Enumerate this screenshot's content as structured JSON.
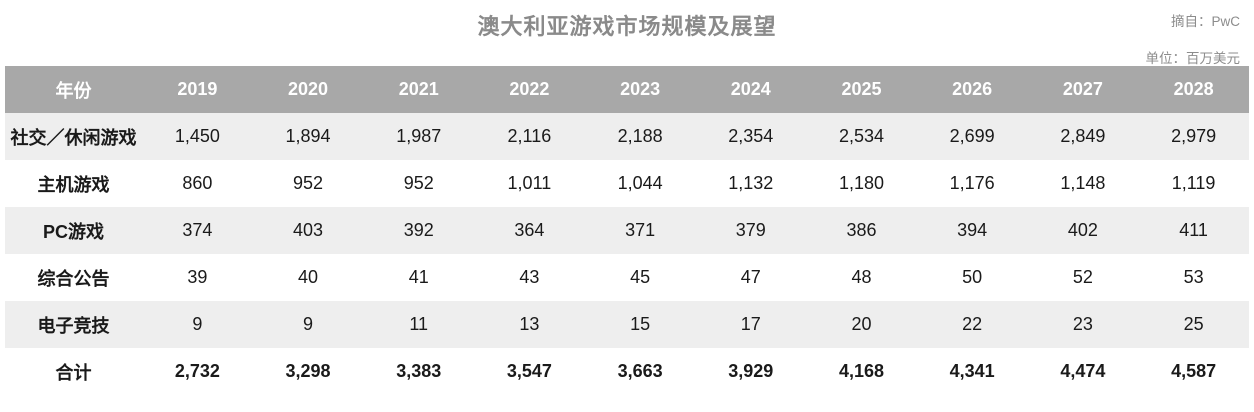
{
  "page": {
    "title": "澳大利亚游戏市场规模及展望",
    "source_label": "摘自：PwC",
    "unit_label": "单位：百万美元"
  },
  "colors": {
    "header_bg": "#a8a8a8",
    "row_stripe": "#eeeeee",
    "title_text": "#8a8a8a",
    "note_text": "#8c8c8c",
    "body_text": "#1a1a1a"
  },
  "chart_data": {
    "type": "table",
    "title": "澳大利亚游戏市场规模及展望",
    "source": "PwC",
    "unit": "百万美元",
    "columns": [
      "年份",
      "2019",
      "2020",
      "2021",
      "2022",
      "2023",
      "2024",
      "2025",
      "2026",
      "2027",
      "2028"
    ],
    "rows": [
      {
        "label": "社交／休闲游戏",
        "values": [
          "1,450",
          "1,894",
          "1,987",
          "2,116",
          "2,188",
          "2,354",
          "2,534",
          "2,699",
          "2,849",
          "2,979"
        ],
        "is_total": false
      },
      {
        "label": "主机游戏",
        "values": [
          "860",
          "952",
          "952",
          "1,011",
          "1,044",
          "1,132",
          "1,180",
          "1,176",
          "1,148",
          "1,119"
        ],
        "is_total": false
      },
      {
        "label": "PC游戏",
        "values": [
          "374",
          "403",
          "392",
          "364",
          "371",
          "379",
          "386",
          "394",
          "402",
          "411"
        ],
        "is_total": false
      },
      {
        "label": "综合公告",
        "values": [
          "39",
          "40",
          "41",
          "43",
          "45",
          "47",
          "48",
          "50",
          "52",
          "53"
        ],
        "is_total": false
      },
      {
        "label": "电子竞技",
        "values": [
          "9",
          "9",
          "11",
          "13",
          "15",
          "17",
          "20",
          "22",
          "23",
          "25"
        ],
        "is_total": false
      },
      {
        "label": "合计",
        "values": [
          "2,732",
          "3,298",
          "3,383",
          "3,547",
          "3,663",
          "3,929",
          "4,168",
          "4,341",
          "4,474",
          "4,587"
        ],
        "is_total": true
      }
    ]
  }
}
